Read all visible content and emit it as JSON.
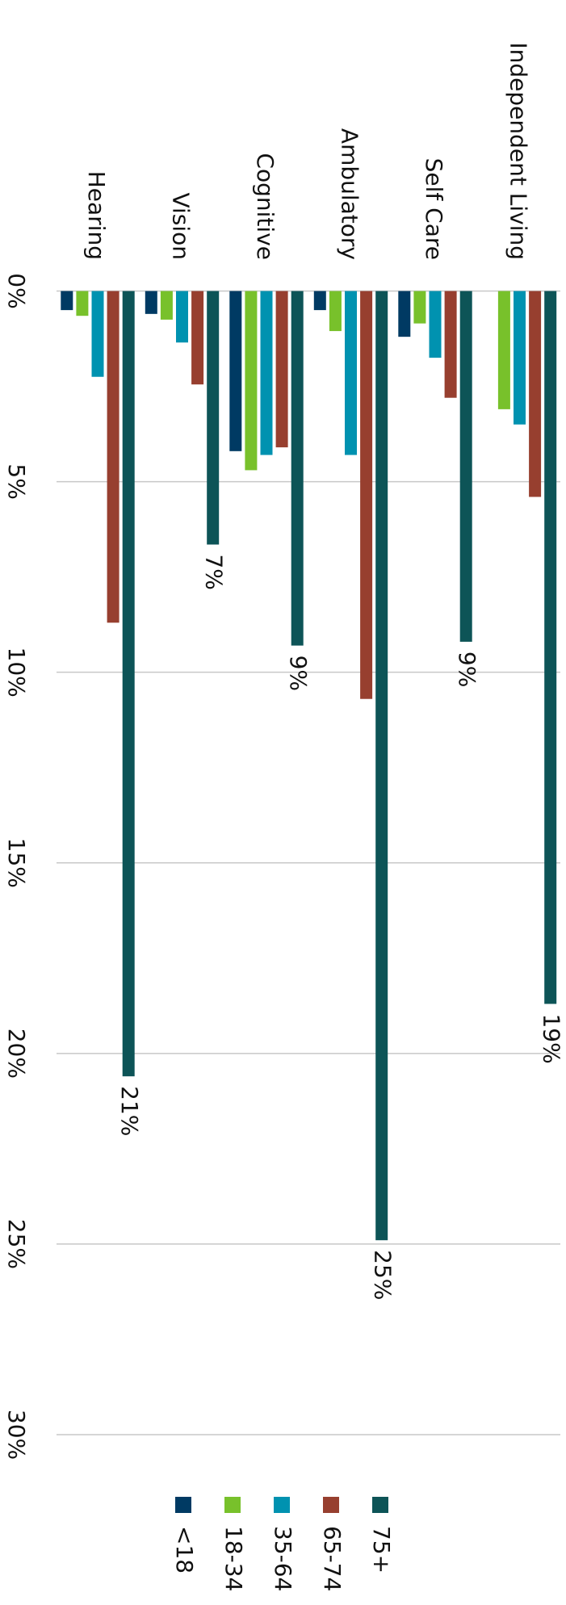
{
  "chart_data": {
    "type": "bar",
    "categories": [
      "Hearing",
      "Vision",
      "Cognitive",
      "Ambulatory",
      "Self Care",
      "Independent Living"
    ],
    "series": [
      {
        "name": "<18",
        "color": "#003a63",
        "values": [
          0.5,
          0.6,
          4.2,
          0.5,
          1.2,
          0
        ]
      },
      {
        "name": "18-34",
        "color": "#78c12b",
        "values": [
          0.65,
          0.75,
          4.7,
          1.05,
          0.85,
          3.1
        ]
      },
      {
        "name": "35-64",
        "color": "#0092b0",
        "values": [
          2.25,
          1.35,
          4.3,
          4.3,
          1.75,
          3.5
        ]
      },
      {
        "name": "65-74",
        "color": "#973f2f",
        "values": [
          8.7,
          2.45,
          4.1,
          10.7,
          2.8,
          5.4
        ]
      },
      {
        "name": "75+",
        "color": "#0d5457",
        "values": [
          20.6,
          6.65,
          9.3,
          24.9,
          9.2,
          18.7
        ],
        "value_labels": [
          "21%",
          "7%",
          "9%",
          "25%",
          "9%",
          "19%"
        ]
      }
    ],
    "ylim": [
      0,
      30
    ],
    "yticks": [
      {
        "value": 0,
        "label": "0%"
      },
      {
        "value": 5,
        "label": "5%"
      },
      {
        "value": 10,
        "label": "10%"
      },
      {
        "value": 15,
        "label": "15%"
      },
      {
        "value": 20,
        "label": "20%"
      },
      {
        "value": 25,
        "label": "25%"
      },
      {
        "value": 30,
        "label": "30%"
      }
    ],
    "grid": true
  }
}
